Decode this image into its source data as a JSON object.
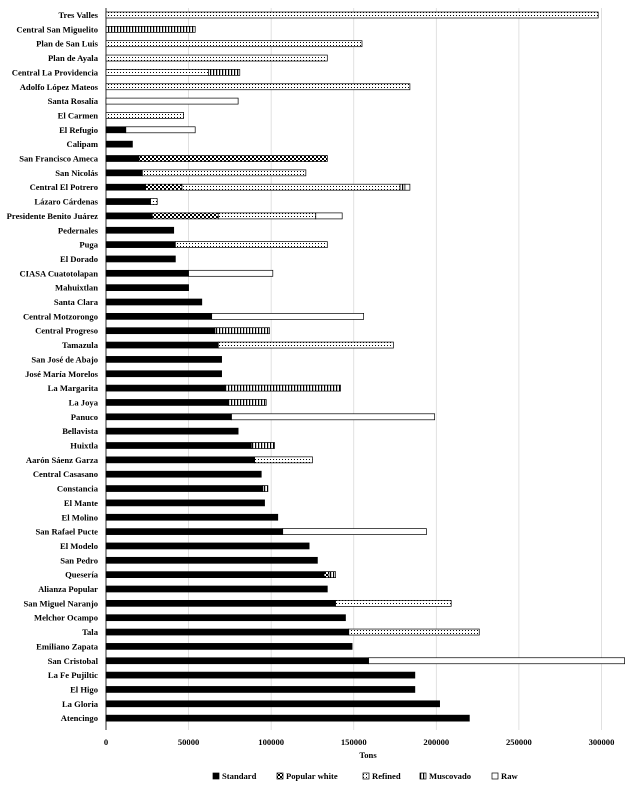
{
  "chart_data": {
    "type": "bar",
    "orientation": "horizontal",
    "stacked": true,
    "xlabel": "Tons",
    "ylabel": "",
    "xlim": [
      0,
      310000
    ],
    "xticks": [
      0,
      50000,
      100000,
      150000,
      200000,
      250000,
      300000
    ],
    "xtick_labels": [
      "0",
      "50000",
      "100000",
      "150000",
      "200000",
      "250000",
      "300000"
    ],
    "grid": "vertical",
    "legend_position": "bottom",
    "series": [
      {
        "name": "Standard",
        "pattern": "solid"
      },
      {
        "name": "Popular white",
        "pattern": "checker"
      },
      {
        "name": "Refined",
        "pattern": "dots"
      },
      {
        "name": "Muscovado",
        "pattern": "vstripes"
      },
      {
        "name": "Raw",
        "pattern": "empty"
      }
    ],
    "categories": [
      {
        "name": "Tres Valles",
        "segments": [
          0,
          0,
          298000,
          0,
          0
        ]
      },
      {
        "name": "Central San Miguelito",
        "segments": [
          0,
          0,
          0,
          54000,
          0
        ]
      },
      {
        "name": "Plan de San Luis",
        "segments": [
          0,
          0,
          155000,
          0,
          0
        ]
      },
      {
        "name": "Plan de Ayala",
        "segments": [
          0,
          0,
          134000,
          0,
          0
        ]
      },
      {
        "name": "Central La Providencia",
        "segments": [
          0,
          0,
          62000,
          19000,
          0
        ]
      },
      {
        "name": "Adolfo López Mateos",
        "segments": [
          0,
          0,
          184000,
          0,
          0
        ]
      },
      {
        "name": "Santa Rosalía",
        "segments": [
          0,
          0,
          0,
          0,
          80000
        ]
      },
      {
        "name": "El Carmen",
        "segments": [
          0,
          0,
          47000,
          0,
          0
        ]
      },
      {
        "name": "El Refugio",
        "segments": [
          12000,
          0,
          0,
          0,
          42000
        ]
      },
      {
        "name": "Calipam",
        "segments": [
          16000,
          0,
          0,
          0,
          0
        ]
      },
      {
        "name": "San Francisco Ameca",
        "segments": [
          20000,
          114000,
          0,
          0,
          0
        ]
      },
      {
        "name": "San Nicolás",
        "segments": [
          22000,
          0,
          99000,
          0,
          0
        ]
      },
      {
        "name": "Central El Potrero",
        "segments": [
          24000,
          22000,
          132000,
          3000,
          3000
        ]
      },
      {
        "name": "Lázaro Cárdenas",
        "segments": [
          27000,
          0,
          4000,
          0,
          0
        ]
      },
      {
        "name": "Presidente Benito Juárez",
        "segments": [
          28000,
          40000,
          59000,
          0,
          16000
        ]
      },
      {
        "name": "Pedernales",
        "segments": [
          41000,
          0,
          0,
          0,
          0
        ]
      },
      {
        "name": "Puga",
        "segments": [
          42000,
          0,
          92000,
          0,
          0
        ]
      },
      {
        "name": "El Dorado",
        "segments": [
          42000,
          0,
          0,
          0,
          0
        ]
      },
      {
        "name": "CIASA Cuatotolapan",
        "segments": [
          50000,
          0,
          0,
          0,
          51000
        ]
      },
      {
        "name": "Mahuixtlan",
        "segments": [
          50000,
          0,
          0,
          0,
          0
        ]
      },
      {
        "name": "Santa Clara",
        "segments": [
          58000,
          0,
          0,
          0,
          0
        ]
      },
      {
        "name": "Central Motzorongo",
        "segments": [
          64000,
          0,
          0,
          0,
          92000
        ]
      },
      {
        "name": "Central Progreso",
        "segments": [
          66000,
          0,
          0,
          33000,
          0
        ]
      },
      {
        "name": "Tamazula",
        "segments": [
          68000,
          0,
          106000,
          0,
          0
        ]
      },
      {
        "name": "San José de Abajo",
        "segments": [
          70000,
          0,
          0,
          0,
          0
        ]
      },
      {
        "name": "José María Morelos",
        "segments": [
          70000,
          0,
          0,
          0,
          0
        ]
      },
      {
        "name": "La Margarita",
        "segments": [
          72000,
          0,
          0,
          70000,
          0
        ]
      },
      {
        "name": "La Joya",
        "segments": [
          74000,
          0,
          0,
          23000,
          0
        ]
      },
      {
        "name": "Panuco",
        "segments": [
          76000,
          0,
          0,
          0,
          123000
        ]
      },
      {
        "name": "Bellavista",
        "segments": [
          80000,
          0,
          0,
          0,
          0
        ]
      },
      {
        "name": "Huixtla",
        "segments": [
          88000,
          0,
          0,
          14000,
          0
        ]
      },
      {
        "name": "Aarón Sáenz Garza",
        "segments": [
          90000,
          0,
          35000,
          0,
          0
        ]
      },
      {
        "name": "Central Casasano",
        "segments": [
          94000,
          0,
          0,
          0,
          0
        ]
      },
      {
        "name": "Constancia",
        "segments": [
          95000,
          0,
          0,
          3000,
          0
        ]
      },
      {
        "name": "El Mante",
        "segments": [
          96000,
          0,
          0,
          0,
          0
        ]
      },
      {
        "name": "El Molino",
        "segments": [
          104000,
          0,
          0,
          0,
          0
        ]
      },
      {
        "name": "San Rafael Pucte",
        "segments": [
          107000,
          0,
          0,
          0,
          87000
        ]
      },
      {
        "name": "El Modelo",
        "segments": [
          123000,
          0,
          0,
          0,
          0
        ]
      },
      {
        "name": "San Pedro",
        "segments": [
          128000,
          0,
          0,
          0,
          0
        ]
      },
      {
        "name": "Quesería",
        "segments": [
          132000,
          3000,
          0,
          4000,
          0
        ]
      },
      {
        "name": "Alianza Popular",
        "segments": [
          134000,
          0,
          0,
          0,
          0
        ]
      },
      {
        "name": "San Miguel Naranjo",
        "segments": [
          139000,
          0,
          70000,
          0,
          0
        ]
      },
      {
        "name": "Melchor Ocampo",
        "segments": [
          145000,
          0,
          0,
          0,
          0
        ]
      },
      {
        "name": "Tala",
        "segments": [
          147000,
          0,
          79000,
          0,
          0
        ]
      },
      {
        "name": "Emiliano Zapata",
        "segments": [
          149000,
          0,
          0,
          0,
          0
        ]
      },
      {
        "name": "San Cristobal",
        "segments": [
          159000,
          0,
          0,
          0,
          155000
        ]
      },
      {
        "name": "La Fe Pujiltic",
        "segments": [
          187000,
          0,
          0,
          0,
          0
        ]
      },
      {
        "name": "El Higo",
        "segments": [
          187000,
          0,
          0,
          0,
          0
        ]
      },
      {
        "name": "La Gloria",
        "segments": [
          202000,
          0,
          0,
          0,
          0
        ]
      },
      {
        "name": "Atencingo",
        "segments": [
          220000,
          0,
          0,
          0,
          0
        ]
      }
    ]
  }
}
